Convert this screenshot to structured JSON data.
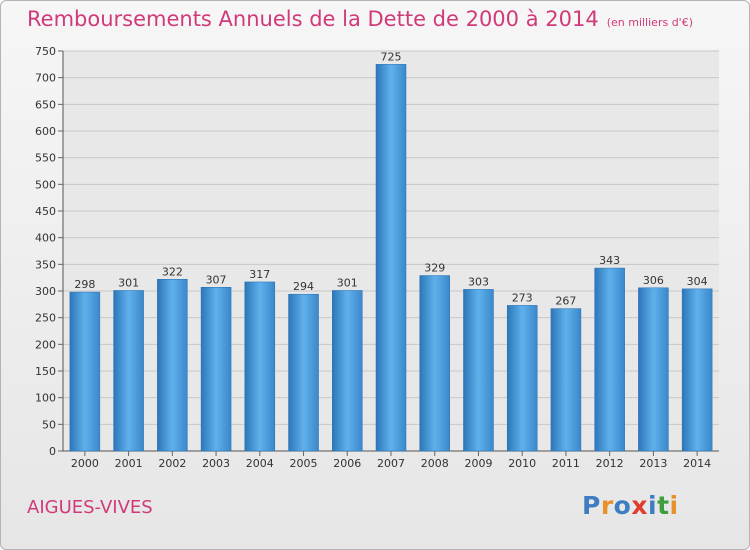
{
  "header": {
    "title": "Remboursements Annuels de la Dette de 2000 à 2014",
    "unit": "(en milliers d'€)"
  },
  "footer": {
    "commune": "AIGUES-VIVES",
    "logo": "Proxiti",
    "logo_colors": [
      "#3d7ec2",
      "#e8902a",
      "#3d7ec2",
      "#e03d2e",
      "#3d7ec2",
      "#3d9e3d",
      "#e8902a"
    ]
  },
  "colors": {
    "bar": "#3f8fd2",
    "bar_light": "#5fb1ec",
    "bar_dark": "#2c76b9",
    "title": "#d13a7a",
    "grid": "#c8c8c8"
  },
  "chart_data": {
    "type": "bar",
    "title": "Remboursements Annuels de la Dette de 2000 à 2014",
    "categories": [
      "2000",
      "2001",
      "2002",
      "2003",
      "2004",
      "2005",
      "2006",
      "2007",
      "2008",
      "2009",
      "2010",
      "2011",
      "2012",
      "2013",
      "2014"
    ],
    "values": [
      298,
      301,
      322,
      307,
      317,
      294,
      301,
      725,
      329,
      303,
      273,
      267,
      343,
      306,
      304
    ],
    "ylim": [
      0,
      750
    ],
    "yticks": [
      0,
      50,
      100,
      150,
      200,
      250,
      300,
      350,
      400,
      450,
      500,
      550,
      600,
      650,
      700,
      750
    ],
    "grid": true,
    "data_labels": true
  }
}
